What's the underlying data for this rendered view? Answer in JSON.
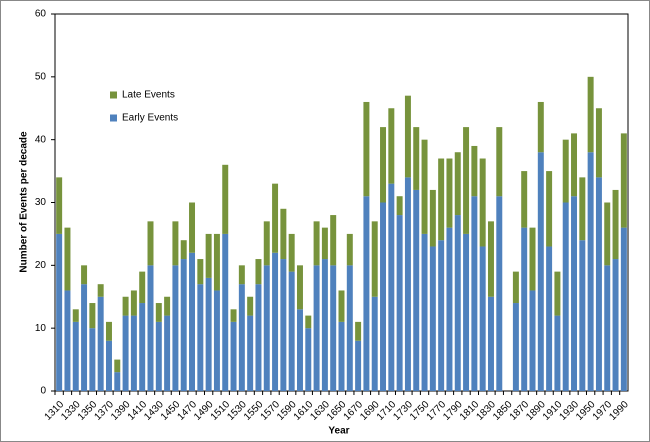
{
  "chart_data": {
    "type": "stacked_bar",
    "x_label": "Year",
    "y_label": "Number of Events per decade",
    "categories": [
      "1310",
      null,
      "1330",
      null,
      "1350",
      null,
      "1370",
      null,
      "1390",
      null,
      "1410",
      null,
      "1430",
      null,
      "1450",
      null,
      "1470",
      null,
      "1490",
      null,
      "1510",
      null,
      "1530",
      null,
      "1550",
      null,
      "1570",
      null,
      "1590",
      null,
      "1610",
      null,
      "1630",
      null,
      "1650",
      null,
      "1670",
      null,
      "1690",
      null,
      "1710",
      null,
      "1730",
      null,
      "1750",
      null,
      "1770",
      null,
      "1790",
      null,
      "1810",
      null,
      "1830",
      null,
      "1850",
      null,
      "1870",
      null,
      "1890",
      null,
      "1910",
      null,
      "1930",
      null,
      "1950",
      null,
      "1970",
      null,
      "1990"
    ],
    "series": [
      {
        "name": "Early Events",
        "color": "#4f81bd",
        "values": [
          25,
          16,
          11,
          17,
          10,
          15,
          8,
          3,
          12,
          12,
          14,
          20,
          11,
          12,
          20,
          21,
          22,
          17,
          18,
          16,
          25,
          11,
          17,
          12,
          17,
          20,
          22,
          21,
          19,
          13,
          10,
          20,
          21,
          20,
          11,
          20,
          8,
          31,
          15,
          30,
          33,
          28,
          34,
          32,
          25,
          23,
          24,
          26,
          28,
          25,
          31,
          23,
          15,
          31,
          null,
          14,
          26,
          16,
          38,
          23,
          12,
          30,
          31,
          24,
          38,
          34,
          20,
          21,
          26
        ]
      },
      {
        "name": "Late Events",
        "color": "#77933c",
        "values": [
          9,
          10,
          2,
          3,
          4,
          2,
          3,
          2,
          3,
          4,
          5,
          7,
          3,
          3,
          7,
          3,
          8,
          4,
          7,
          9,
          11,
          2,
          3,
          3,
          4,
          7,
          11,
          8,
          6,
          7,
          2,
          7,
          5,
          8,
          5,
          5,
          3,
          15,
          12,
          12,
          12,
          3,
          13,
          10,
          15,
          9,
          13,
          11,
          10,
          17,
          8,
          14,
          12,
          11,
          null,
          5,
          9,
          10,
          8,
          12,
          7,
          10,
          10,
          10,
          12,
          11,
          10,
          11,
          15
        ]
      }
    ],
    "ylim": [
      0,
      60
    ],
    "yticks": [
      0,
      10,
      20,
      30,
      40,
      50,
      60
    ],
    "grid": false
  }
}
